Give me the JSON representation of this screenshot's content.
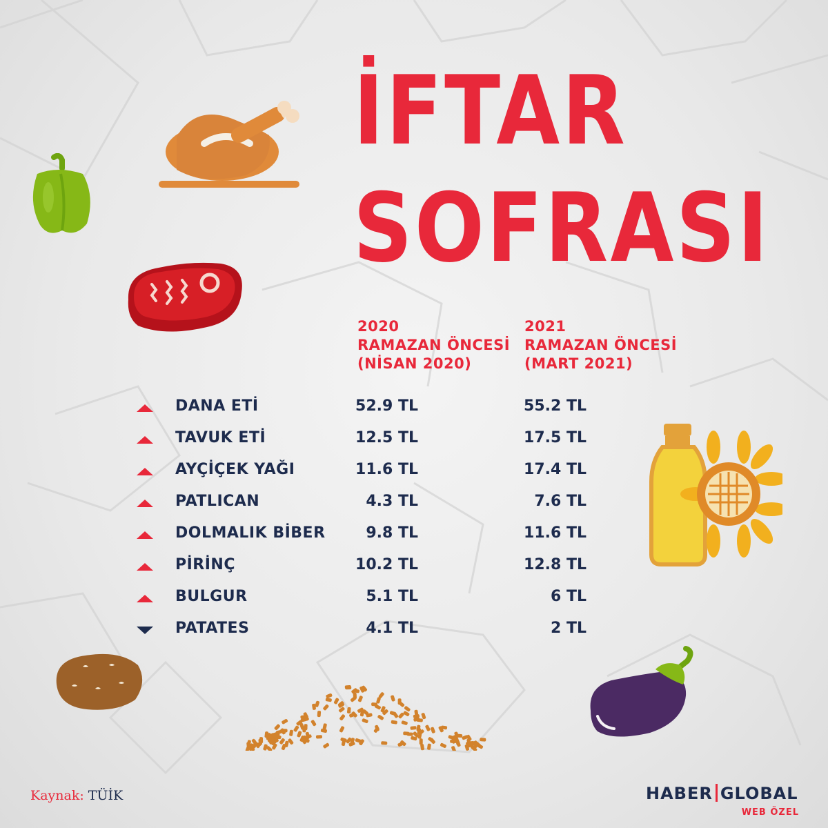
{
  "title": {
    "line1": "İFTAR",
    "line2": "SOFRASI"
  },
  "columns": [
    {
      "line1": "2020",
      "line2": "RAMAZAN ÖNCESİ",
      "line3": "(NİSAN 2020)"
    },
    {
      "line1": "2021",
      "line2": "RAMAZAN ÖNCESİ",
      "line3": "(MART 2021)"
    }
  ],
  "rows": [
    {
      "item": "DANA ETİ",
      "v2020": "52.9 TL",
      "v2021": "55.2 TL",
      "trend": "up"
    },
    {
      "item": "TAVUK ETİ",
      "v2020": "12.5 TL",
      "v2021": "17.5 TL",
      "trend": "up"
    },
    {
      "item": "AYÇİÇEK YAĞI",
      "v2020": "11.6 TL",
      "v2021": "17.4 TL",
      "trend": "up"
    },
    {
      "item": "PATLICAN",
      "v2020": "4.3 TL",
      "v2021": "7.6 TL",
      "trend": "up"
    },
    {
      "item": "DOLMALIK BİBER",
      "v2020": "9.8 TL",
      "v2021": "11.6 TL",
      "trend": "up"
    },
    {
      "item": "PİRİNÇ",
      "v2020": "10.2 TL",
      "v2021": "12.8 TL",
      "trend": "up"
    },
    {
      "item": "BULGUR",
      "v2020": "5.1 TL",
      "v2021": "6 TL",
      "trend": "up"
    },
    {
      "item": "PATATES",
      "v2020": "4.1 TL",
      "v2021": "2 TL",
      "trend": "down"
    }
  ],
  "source": {
    "label": "Kaynak:",
    "value": "TÜİK"
  },
  "brand": {
    "part1": "HABER",
    "part2": "GLOBAL",
    "sub": "WEB ÖZEL"
  },
  "colors": {
    "accent": "#e8283a",
    "text": "#1d2b4d",
    "background": "#ececec"
  },
  "icons": [
    "roast-chicken-icon",
    "green-pepper-icon",
    "steak-icon",
    "oil-bottle-sunflower-icon",
    "potato-icon",
    "bulgur-icon",
    "eggplant-icon"
  ]
}
